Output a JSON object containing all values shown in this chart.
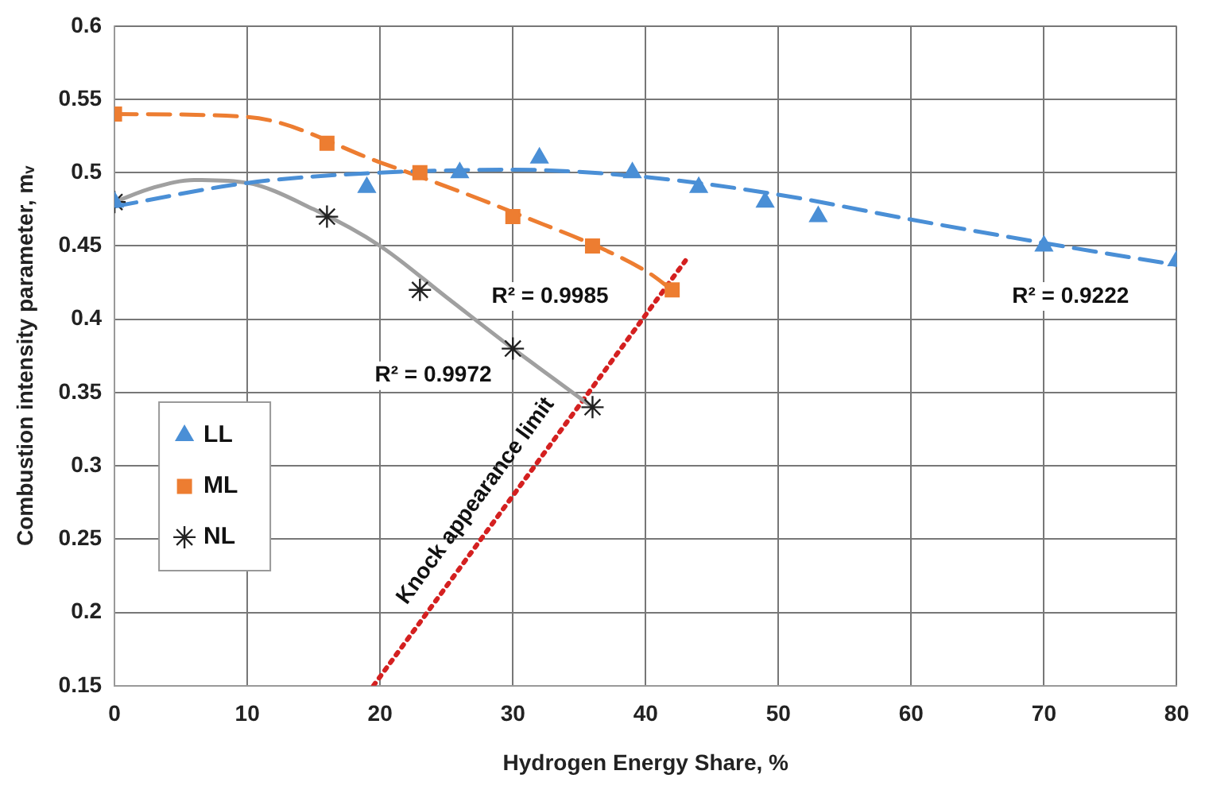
{
  "chart_data": {
    "type": "scatter",
    "xlabel": "Hydrogen Energy Share, %",
    "ylabel": "Combustion intensity parameter, mᵥ",
    "xlim": [
      0,
      80
    ],
    "xticks": [
      0,
      10,
      20,
      30,
      40,
      50,
      60,
      70,
      80
    ],
    "ylim": [
      0.15,
      0.6
    ],
    "yticks": [
      0.15,
      0.2,
      0.25,
      0.3,
      0.35,
      0.4,
      0.45,
      0.5,
      0.55,
      0.6
    ],
    "grid": true,
    "legend": "left",
    "series": [
      {
        "name": "LL",
        "marker": "triangle",
        "color": "#4a8fd6",
        "x": [
          0,
          19,
          26,
          32,
          39,
          44,
          49,
          53,
          70,
          80
        ],
        "values": [
          0.48,
          0.49,
          0.5,
          0.51,
          0.5,
          0.49,
          0.48,
          0.47,
          0.45,
          0.44
        ]
      },
      {
        "name": "ML",
        "marker": "square",
        "color": "#ed7d31",
        "x": [
          0,
          16,
          23,
          30,
          36,
          42
        ],
        "values": [
          0.54,
          0.52,
          0.5,
          0.47,
          0.45,
          0.42
        ]
      },
      {
        "name": "NL",
        "marker": "cross",
        "color": "#222222",
        "x": [
          0,
          16,
          23,
          30,
          36
        ],
        "values": [
          0.48,
          0.47,
          0.42,
          0.38,
          0.34
        ]
      },
      {
        "type": "line",
        "line_style": "dashed",
        "color": "#4a8fd6",
        "x": [
          0,
          10,
          20,
          30,
          40,
          50,
          60,
          70,
          80
        ],
        "values": [
          0.477,
          0.493,
          0.5,
          0.502,
          0.497,
          0.485,
          0.468,
          0.452,
          0.437
        ]
      },
      {
        "type": "line",
        "line_style": "dashed",
        "color": "#ed7d31",
        "x": [
          0,
          10,
          20,
          30,
          40,
          42
        ],
        "values": [
          0.54,
          0.538,
          0.507,
          0.473,
          0.433,
          0.42
        ]
      },
      {
        "type": "line",
        "line_style": "solid",
        "color": "#a0a0a0",
        "x": [
          0,
          3,
          6,
          10,
          15,
          20,
          25,
          30,
          33,
          36
        ],
        "values": [
          0.48,
          0.49,
          0.495,
          0.493,
          0.475,
          0.45,
          0.415,
          0.38,
          0.36,
          0.34
        ]
      },
      {
        "type": "line",
        "line_style": "dotted",
        "color": "#d42020",
        "x": [
          19.5,
          43
        ],
        "values": [
          0.15,
          0.44
        ]
      }
    ],
    "annotations": [
      "R² = 0.9985",
      "R² = 0.9972",
      "R² = 0.9222",
      "Knock appearance limit"
    ]
  }
}
